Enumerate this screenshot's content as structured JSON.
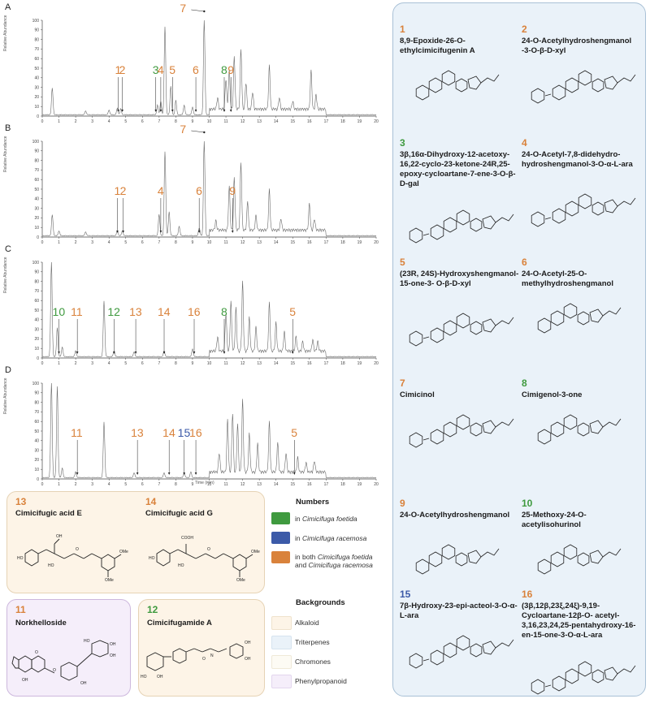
{
  "chart_data": [
    {
      "type": "line",
      "panel": "A",
      "ylabel": "Relative Abundance",
      "xlabel": "",
      "xlim": [
        0,
        20
      ],
      "ylim": [
        0,
        100
      ],
      "x_ticks": [
        "0",
        "1",
        "2",
        "3",
        "4",
        "5",
        "6",
        "7",
        "8",
        "9",
        "10",
        "11",
        "12",
        "13",
        "14",
        "15",
        "16",
        "17",
        "18",
        "19",
        "20"
      ],
      "y_ticks": [
        "0",
        "10",
        "20",
        "30",
        "40",
        "50",
        "60",
        "70",
        "80",
        "90",
        "100"
      ],
      "peaks": [
        [
          0.6,
          28
        ],
        [
          2.6,
          4
        ],
        [
          4.0,
          5
        ],
        [
          4.5,
          7
        ],
        [
          4.7,
          6
        ],
        [
          6.9,
          10
        ],
        [
          7.1,
          14
        ],
        [
          7.35,
          92
        ],
        [
          7.7,
          30
        ],
        [
          8.0,
          15
        ],
        [
          8.5,
          10
        ],
        [
          9.0,
          8
        ],
        [
          9.7,
          100
        ],
        [
          10.5,
          12
        ],
        [
          11.0,
          32
        ],
        [
          11.2,
          40
        ],
        [
          11.5,
          55
        ],
        [
          11.9,
          62
        ],
        [
          12.2,
          28
        ],
        [
          12.6,
          18
        ],
        [
          13.6,
          45
        ],
        [
          14.2,
          12
        ],
        [
          15.0,
          8
        ],
        [
          16.1,
          40
        ],
        [
          16.4,
          15
        ]
      ],
      "labels": [
        {
          "text": "1",
          "x": 4.55,
          "color": "orange"
        },
        {
          "text": "2",
          "x": 4.8,
          "color": "orange"
        },
        {
          "text": "3",
          "x": 6.8,
          "color": "green"
        },
        {
          "text": "4",
          "x": 7.1,
          "color": "orange"
        },
        {
          "text": "5",
          "x": 7.8,
          "color": "orange"
        },
        {
          "text": "6",
          "x": 9.2,
          "color": "orange"
        },
        {
          "text": "7",
          "x": 9.7,
          "color": "orange"
        },
        {
          "text": "8",
          "x": 10.9,
          "color": "green"
        },
        {
          "text": "9",
          "x": 11.3,
          "color": "orange"
        }
      ]
    },
    {
      "type": "line",
      "panel": "B",
      "ylabel": "Relative Abundance",
      "xlabel": "",
      "xlim": [
        0,
        20
      ],
      "ylim": [
        0,
        100
      ],
      "x_ticks": [
        "0",
        "1",
        "2",
        "3",
        "4",
        "5",
        "6",
        "7",
        "8",
        "9",
        "10",
        "11",
        "12",
        "13",
        "14",
        "15",
        "16",
        "17",
        "18",
        "19",
        "20"
      ],
      "y_ticks": [
        "0",
        "10",
        "20",
        "30",
        "40",
        "50",
        "60",
        "70",
        "80",
        "90",
        "100"
      ],
      "peaks": [
        [
          0.6,
          22
        ],
        [
          1.0,
          5
        ],
        [
          2.6,
          4
        ],
        [
          4.5,
          5
        ],
        [
          4.8,
          5
        ],
        [
          7.0,
          22
        ],
        [
          7.35,
          88
        ],
        [
          7.6,
          25
        ],
        [
          8.2,
          10
        ],
        [
          9.4,
          8
        ],
        [
          9.7,
          100
        ],
        [
          10.4,
          10
        ],
        [
          11.2,
          45
        ],
        [
          11.5,
          55
        ],
        [
          11.9,
          70
        ],
        [
          12.3,
          30
        ],
        [
          12.8,
          15
        ],
        [
          13.6,
          42
        ],
        [
          14.3,
          12
        ],
        [
          16.0,
          28
        ],
        [
          16.3,
          12
        ]
      ],
      "labels": [
        {
          "text": "1",
          "x": 4.5,
          "color": "orange"
        },
        {
          "text": "2",
          "x": 4.85,
          "color": "orange"
        },
        {
          "text": "4",
          "x": 7.1,
          "color": "orange"
        },
        {
          "text": "6",
          "x": 9.4,
          "color": "orange"
        },
        {
          "text": "7",
          "x": 9.7,
          "color": "orange"
        },
        {
          "text": "9",
          "x": 11.4,
          "color": "orange"
        }
      ]
    },
    {
      "type": "line",
      "panel": "C",
      "ylabel": "Relative Abundance",
      "xlabel": "",
      "xlim": [
        0,
        20
      ],
      "ylim": [
        0,
        100
      ],
      "x_ticks": [
        "0",
        "1",
        "2",
        "3",
        "4",
        "5",
        "6",
        "7",
        "8",
        "9",
        "10",
        "11",
        "12",
        "13",
        "14",
        "15",
        "16",
        "17",
        "18",
        "19",
        "20"
      ],
      "y_ticks": [
        "0",
        "10",
        "20",
        "30",
        "40",
        "50",
        "60",
        "70",
        "80",
        "90",
        "100"
      ],
      "peaks": [
        [
          0.55,
          100
        ],
        [
          0.9,
          30
        ],
        [
          1.2,
          10
        ],
        [
          2.0,
          6
        ],
        [
          3.7,
          58
        ],
        [
          4.3,
          6
        ],
        [
          5.5,
          5
        ],
        [
          7.3,
          6
        ],
        [
          9.0,
          8
        ],
        [
          10.5,
          15
        ],
        [
          11.0,
          40
        ],
        [
          11.3,
          52
        ],
        [
          11.6,
          45
        ],
        [
          12.0,
          72
        ],
        [
          12.4,
          35
        ],
        [
          12.8,
          25
        ],
        [
          13.6,
          50
        ],
        [
          14.0,
          30
        ],
        [
          14.5,
          20
        ],
        [
          15.2,
          15
        ],
        [
          15.6,
          10
        ],
        [
          16.2,
          12
        ],
        [
          16.5,
          10
        ]
      ],
      "labels": [
        {
          "text": "10",
          "x": 1.0,
          "color": "green"
        },
        {
          "text": "11",
          "x": 2.1,
          "color": "orange"
        },
        {
          "text": "12",
          "x": 4.3,
          "color": "green"
        },
        {
          "text": "13",
          "x": 5.6,
          "color": "orange"
        },
        {
          "text": "14",
          "x": 7.3,
          "color": "orange"
        },
        {
          "text": "16",
          "x": 9.1,
          "color": "orange"
        },
        {
          "text": "8",
          "x": 10.9,
          "color": "green"
        },
        {
          "text": "5",
          "x": 15.0,
          "color": "orange"
        }
      ]
    },
    {
      "type": "line",
      "panel": "D",
      "ylabel": "Relative Abundance",
      "xlabel": "Time (min)",
      "xlim": [
        0,
        20
      ],
      "ylim": [
        0,
        100
      ],
      "x_ticks": [
        "0",
        "1",
        "2",
        "3",
        "4",
        "5",
        "6",
        "7",
        "8",
        "9",
        "10",
        "11",
        "12",
        "13",
        "14",
        "15",
        "16",
        "17",
        "18",
        "19",
        "20"
      ],
      "y_ticks": [
        "0",
        "10",
        "20",
        "30",
        "40",
        "50",
        "60",
        "70",
        "80",
        "90",
        "100"
      ],
      "peaks": [
        [
          0.55,
          100
        ],
        [
          0.9,
          95
        ],
        [
          1.2,
          10
        ],
        [
          2.0,
          6
        ],
        [
          3.7,
          58
        ],
        [
          5.5,
          5
        ],
        [
          7.3,
          5
        ],
        [
          8.5,
          5
        ],
        [
          8.9,
          6
        ],
        [
          10.6,
          20
        ],
        [
          11.1,
          55
        ],
        [
          11.4,
          62
        ],
        [
          11.7,
          50
        ],
        [
          12.0,
          75
        ],
        [
          12.4,
          40
        ],
        [
          12.9,
          30
        ],
        [
          13.6,
          52
        ],
        [
          14.1,
          30
        ],
        [
          14.6,
          20
        ],
        [
          15.3,
          15
        ],
        [
          15.8,
          10
        ],
        [
          16.3,
          12
        ]
      ],
      "labels": [
        {
          "text": "11",
          "x": 2.1,
          "color": "orange"
        },
        {
          "text": "13",
          "x": 5.7,
          "color": "orange"
        },
        {
          "text": "14",
          "x": 7.6,
          "color": "orange"
        },
        {
          "text": "15",
          "x": 8.5,
          "color": "blue"
        },
        {
          "text": "16",
          "x": 9.2,
          "color": "orange"
        },
        {
          "text": "5",
          "x": 15.1,
          "color": "orange"
        }
      ]
    }
  ],
  "colors": {
    "orange": "#d9823b",
    "green": "#3f9a3f",
    "blue": "#3c5aa8",
    "trace": "#6a6a6a"
  },
  "panels": {
    "A": "A",
    "B": "B",
    "C": "C",
    "D": "D"
  },
  "compounds": [
    {
      "num": "1",
      "color": "orange",
      "name": "8,9-Epoxide-26-O-ethylcimicifugenin A"
    },
    {
      "num": "2",
      "color": "orange",
      "name": "24-O-Acetylhydroshengmanol -3-O-β-D-xyl"
    },
    {
      "num": "3",
      "color": "green",
      "name": "3β,16α-Dihydroxy-12-acetoxy-16,22-cyclo-23-ketone-24R,25-epoxy-cycloartane-7-ene-3-O-β-D-gal"
    },
    {
      "num": "4",
      "color": "orange",
      "name": "24-O-Acetyl-7,8-didehydro-hydroshengmanol-3-O-α-L-ara"
    },
    {
      "num": "5",
      "color": "orange",
      "name": "(23R, 24S)-Hydroxyshengmanol-15-one-3- O-β-D-xyl"
    },
    {
      "num": "6",
      "color": "orange",
      "name": "24-O-Acetyl-25-O-methylhydroshengmanol"
    },
    {
      "num": "7",
      "color": "orange",
      "name": "Cimicinol"
    },
    {
      "num": "8",
      "color": "green",
      "name": "Cimigenol-3-one"
    },
    {
      "num": "9",
      "color": "orange",
      "name": "24-O-Acetylhydroshengmanol"
    },
    {
      "num": "10",
      "color": "green",
      "name": "25-Methoxy-24-O-acetylisohurinol"
    },
    {
      "num": "15",
      "color": "blue",
      "name": "7β-Hydroxy-23-epi-acteol-3-O-α-L-ara"
    },
    {
      "num": "16",
      "color": "orange",
      "name": "(3β,12β,23ξ,24ξ)-9,19-Cycloartane-12β-O- acetyl-3,16,23,24,25-pentahydroxy-16-en-15-one-3-O-α-L-ara"
    }
  ],
  "bottom": {
    "c13": {
      "num": "13",
      "name": "Cimicifugic acid E"
    },
    "c14": {
      "num": "14",
      "name": "Cimicifugic acid G"
    },
    "c11": {
      "num": "11",
      "name": "Norkhelloside"
    },
    "c12": {
      "num": "12",
      "name": "Cimicifugamide A"
    }
  },
  "legend": {
    "numbers_title": "Numbers",
    "in_foetida": "in ",
    "foetida": "Cimicifuga foetida",
    "in_racemosa": "in ",
    "racemosa": "Cimicifuga racemosa",
    "in_both": "in both ",
    "and": "and ",
    "backgrounds_title": "Backgrounds",
    "alkaloid": "Alkaloid",
    "triterpenes": "Triterpenes",
    "chromones": "Chromones",
    "phenylpropanoid": "Phenylpropanoid",
    "bg_colors": {
      "alkaloid": "#fdf4e7",
      "triterpenes": "#eaf2f9",
      "chromones": "#fdfbf4",
      "phenylpropanoid": "#f5eefa"
    }
  }
}
